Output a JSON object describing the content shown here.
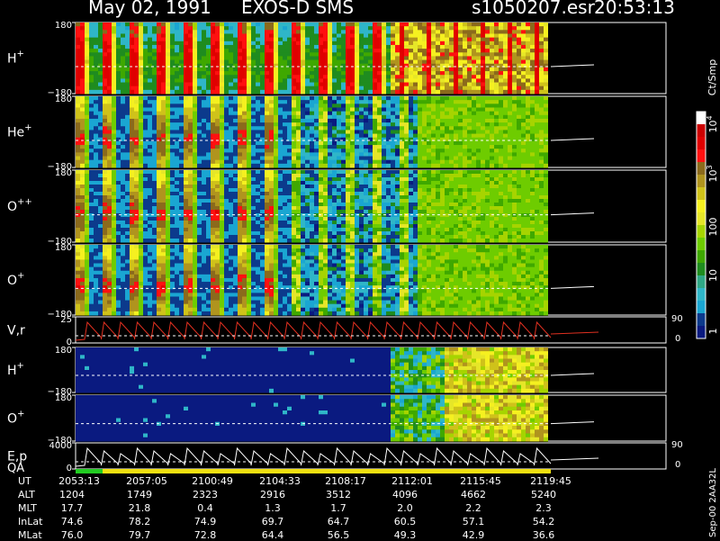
{
  "header": {
    "date": "May 02, 1991",
    "instrument": "EXOS-D SMS",
    "file": "s1050207.esr",
    "time": "20:53:13"
  },
  "panels": [
    {
      "label": "H",
      "sup": "+",
      "ytop": "180",
      "ybot": "−180"
    },
    {
      "label": "He",
      "sup": "+",
      "ytop": "180",
      "ybot": "−180"
    },
    {
      "label": "O",
      "sup": "++",
      "ytop": "180",
      "ybot": "−180"
    },
    {
      "label": "O",
      "sup": "+",
      "ytop": "180",
      "ybot": "−180"
    },
    {
      "label": "V,r",
      "sup": "",
      "ytop": "25",
      "ybot": "0",
      "rtop": "90",
      "rbot": "0"
    },
    {
      "label": "H",
      "sup": "+",
      "ytop": "180",
      "ybot": "−180"
    },
    {
      "label": "O",
      "sup": "+",
      "ytop": "180",
      "ybot": "−180"
    },
    {
      "label": "E,p",
      "sup": "",
      "ytop": "4000",
      "ybot": "0",
      "rtop": "90",
      "rbot": "0"
    }
  ],
  "qa_label": "QA",
  "colorbar": {
    "unit": "Ct/Smp",
    "labels": [
      {
        "base": "10",
        "exp": "4"
      },
      {
        "base": "10",
        "exp": "3"
      },
      {
        "base": "100",
        "exp": ""
      },
      {
        "base": "10",
        "exp": ""
      },
      {
        "base": "1",
        "exp": ""
      }
    ],
    "colors": [
      "#ffffff",
      "#cc0000",
      "#e00000",
      "#ff1010",
      "#8b6a1c",
      "#b0941e",
      "#cfc21a",
      "#f5f020",
      "#e6e628",
      "#a6d400",
      "#6ecc00",
      "#3fa800",
      "#1f8c1f",
      "#2fa886",
      "#2fb6c8",
      "#1aa6d2",
      "#0c3a8c",
      "#0a1a80"
    ]
  },
  "table": {
    "row_labels": [
      "UT",
      "ALT",
      "MLT",
      "InLat",
      "MLat"
    ],
    "columns": [
      [
        "2053:13",
        "1204",
        "17.7",
        "74.6",
        "76.0"
      ],
      [
        "2057:05",
        "1749",
        "21.8",
        "78.2",
        "79.7"
      ],
      [
        "2100:49",
        "2323",
        "0.4",
        "74.9",
        "72.8"
      ],
      [
        "2104:33",
        "2916",
        "1.3",
        "69.7",
        "64.4"
      ],
      [
        "2108:17",
        "3512",
        "1.7",
        "64.7",
        "56.5"
      ],
      [
        "2112:01",
        "4096",
        "2.0",
        "60.5",
        "49.3"
      ],
      [
        "2115:45",
        "4662",
        "2.2",
        "57.1",
        "42.9"
      ],
      [
        "2119:45",
        "5240",
        "2.3",
        "54.2",
        "36.6"
      ]
    ]
  },
  "footer_note": "Sep-00 2AA32L",
  "chart_data": {
    "type": "heatmap",
    "title": "May 02, 1991   EXOS-D SMS",
    "x_ticks": [
      "2053:13",
      "2057:05",
      "2100:49",
      "2104:33",
      "2108:17",
      "2112:01",
      "2115:45",
      "2119:45"
    ],
    "colorbar_unit": "Ct/Smp",
    "colorbar_ticks": [
      "1",
      "10",
      "100",
      "10^3",
      "10^4"
    ],
    "colorbar_scale": "log",
    "panels": [
      {
        "name": "H+",
        "ylim": [
          -180,
          180
        ],
        "type": "spectrogram"
      },
      {
        "name": "He+",
        "ylim": [
          -180,
          180
        ],
        "type": "spectrogram"
      },
      {
        "name": "O++",
        "ylim": [
          -180,
          180
        ],
        "type": "spectrogram"
      },
      {
        "name": "O+",
        "ylim": [
          -180,
          180
        ],
        "type": "spectrogram"
      },
      {
        "name": "V,r",
        "ylim": [
          0,
          25
        ],
        "y2lim": [
          0,
          90
        ],
        "type": "line"
      },
      {
        "name": "H+",
        "ylim": [
          -180,
          180
        ],
        "type": "spectrogram"
      },
      {
        "name": "O+",
        "ylim": [
          -180,
          180
        ],
        "type": "spectrogram"
      },
      {
        "name": "E,p",
        "ylim": [
          0,
          4000
        ],
        "y2lim": [
          0,
          90
        ],
        "type": "line"
      }
    ]
  }
}
